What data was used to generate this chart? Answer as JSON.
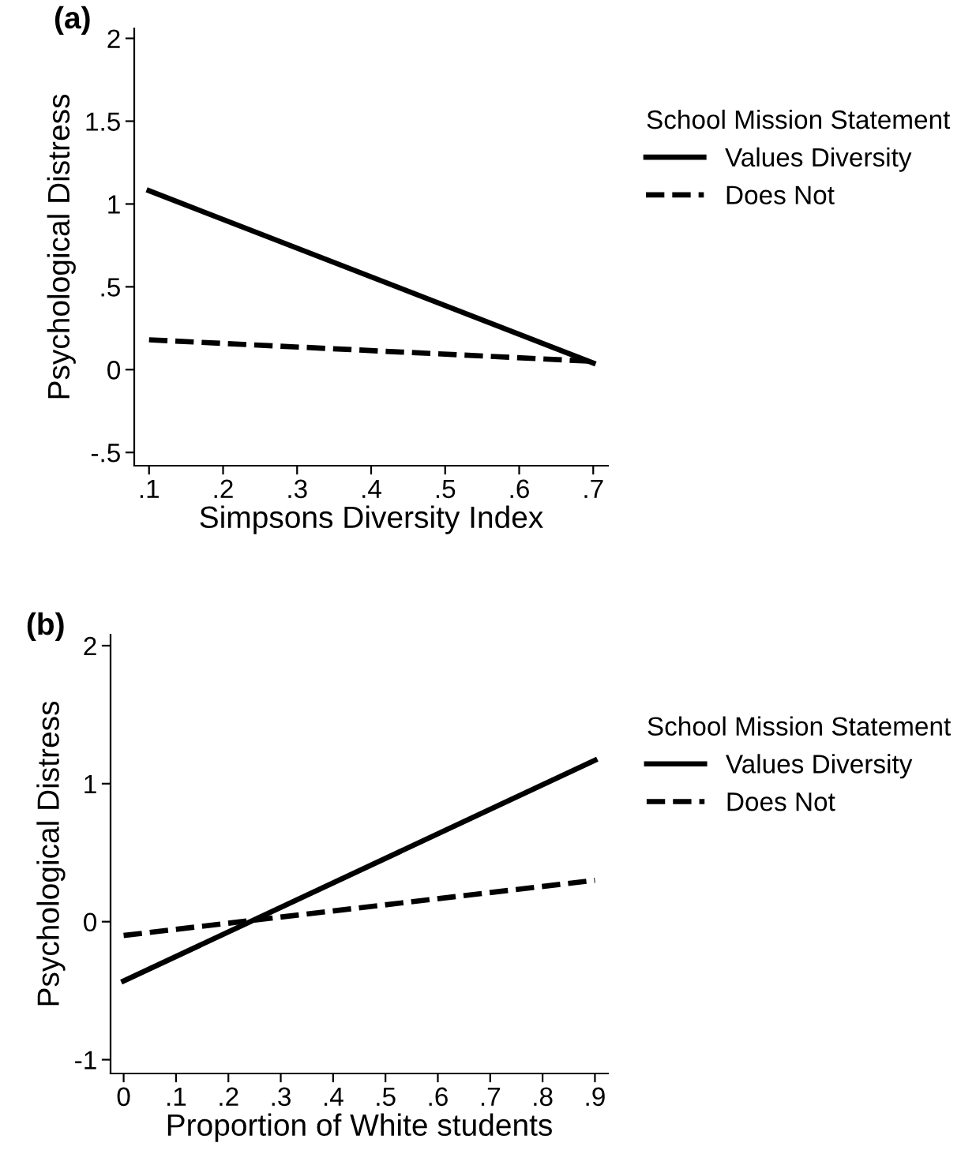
{
  "chart_data": [
    {
      "type": "line",
      "title": "(a)",
      "xlabel": "Simpsons Diversity Index",
      "ylabel": "Psychological Distress",
      "legend_title": "School Mission Statement",
      "legend": "right",
      "grid": false,
      "x": [
        0.1,
        0.7
      ],
      "series": [
        {
          "name": "Values Diversity",
          "color": "#000000",
          "line_style": "solid",
          "values": [
            1.08,
            0.04
          ]
        },
        {
          "name": "Does Not",
          "color": "#000000",
          "line_style": "dashed",
          "values": [
            0.18,
            0.05
          ]
        }
      ],
      "xlim": [
        0.08,
        0.72
      ],
      "ylim": [
        -0.58,
        2.06
      ],
      "xticks": [
        {
          "value": 0.1,
          "label": ".1"
        },
        {
          "value": 0.2,
          "label": ".2"
        },
        {
          "value": 0.3,
          "label": ".3"
        },
        {
          "value": 0.4,
          "label": ".4"
        },
        {
          "value": 0.5,
          "label": ".5"
        },
        {
          "value": 0.6,
          "label": ".6"
        },
        {
          "value": 0.7,
          "label": ".7"
        }
      ],
      "yticks": [
        {
          "value": -0.5,
          "label": "-.5"
        },
        0,
        {
          "value": 0.5,
          "label": ".5"
        },
        1,
        1.5,
        2
      ]
    },
    {
      "type": "line",
      "title": "(b)",
      "xlabel": "Proportion of White students",
      "ylabel": "Psychological Distress",
      "legend_title": "School Mission Statement",
      "legend": "right",
      "grid": false,
      "x": [
        0,
        0.9
      ],
      "series": [
        {
          "name": "Values Diversity",
          "color": "#000000",
          "line_style": "solid",
          "values": [
            -0.43,
            1.17
          ]
        },
        {
          "name": "Does Not",
          "color": "#000000",
          "line_style": "dashed",
          "values": [
            -0.1,
            0.3
          ]
        }
      ],
      "xlim": [
        -0.025,
        0.925
      ],
      "ylim": [
        -1.1,
        2.08
      ],
      "xticks": [
        0,
        {
          "value": 0.1,
          "label": ".1"
        },
        {
          "value": 0.2,
          "label": ".2"
        },
        {
          "value": 0.3,
          "label": ".3"
        },
        {
          "value": 0.4,
          "label": ".4"
        },
        {
          "value": 0.5,
          "label": ".5"
        },
        {
          "value": 0.6,
          "label": ".6"
        },
        {
          "value": 0.7,
          "label": ".7"
        },
        {
          "value": 0.8,
          "label": ".8"
        },
        {
          "value": 0.9,
          "label": ".9"
        }
      ],
      "yticks": [
        -1,
        0,
        1,
        2
      ]
    }
  ]
}
